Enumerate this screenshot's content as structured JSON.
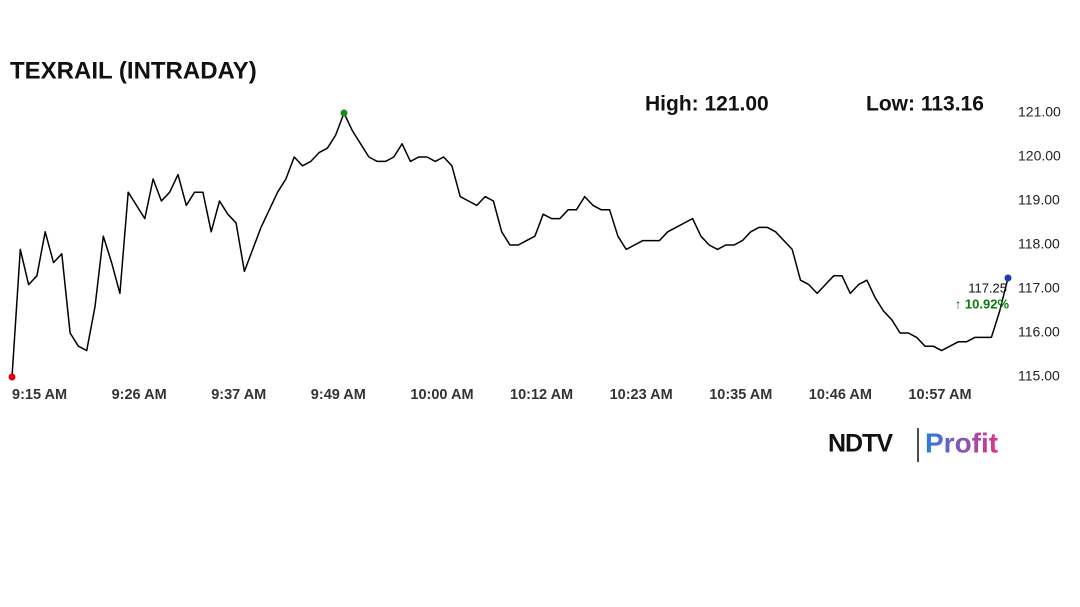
{
  "chart_data": {
    "type": "line",
    "title": "TEXRAIL (INTRADAY)",
    "high_label": "High: 121.00",
    "low_label": "Low: 113.16",
    "change_label": "↑ 10.92%",
    "color": "#000000",
    "start_color": "#e0000f",
    "high_color": "#1a8a1a",
    "end_color": "#1f3fa6",
    "change_color": "#0a7a0a",
    "high_index": 40,
    "categories": [
      "9:15 AM",
      null,
      null,
      null,
      null,
      null,
      null,
      null,
      null,
      null,
      null,
      null,
      "9:26 AM",
      null,
      null,
      null,
      null,
      null,
      null,
      null,
      null,
      null,
      null,
      null,
      "9:37 AM",
      null,
      null,
      null,
      null,
      null,
      null,
      null,
      null,
      null,
      null,
      null,
      "9:49 AM",
      null,
      null,
      null,
      null,
      null,
      null,
      null,
      null,
      null,
      null,
      null,
      "10:00 AM",
      null,
      null,
      null,
      null,
      null,
      null,
      null,
      null,
      null,
      null,
      null,
      "10:12 AM",
      null,
      null,
      null,
      null,
      null,
      null,
      null,
      null,
      null,
      null,
      null,
      "10:23 AM",
      null,
      null,
      null,
      null,
      null,
      null,
      null,
      null,
      null,
      null,
      null,
      "10:35 AM",
      null,
      null,
      null,
      null,
      null,
      null,
      null,
      null,
      null,
      null,
      null,
      "10:46 AM",
      null,
      null,
      null,
      null,
      null,
      null,
      null,
      null,
      null,
      null,
      null,
      "10:57 AM",
      null,
      null,
      null,
      null,
      null,
      null,
      null,
      null,
      null,
      null,
      null,
      null
    ],
    "values": [
      115.0,
      117.9,
      117.1,
      117.3,
      118.3,
      117.6,
      117.8,
      116.0,
      115.7,
      115.6,
      116.6,
      118.2,
      117.6,
      116.9,
      119.2,
      118.9,
      118.6,
      119.5,
      119.0,
      119.2,
      119.6,
      118.9,
      119.2,
      119.2,
      118.3,
      119.0,
      118.7,
      118.5,
      117.4,
      117.9,
      118.4,
      118.8,
      119.2,
      119.5,
      120.0,
      119.8,
      119.9,
      120.1,
      120.2,
      120.5,
      121.0,
      120.6,
      120.3,
      120.0,
      119.9,
      119.9,
      120.0,
      120.3,
      119.9,
      120.0,
      120.0,
      119.9,
      120.0,
      119.8,
      119.1,
      119.0,
      118.9,
      119.1,
      119.0,
      118.3,
      118.0,
      118.0,
      118.1,
      118.2,
      118.7,
      118.6,
      118.6,
      118.8,
      118.8,
      119.1,
      118.9,
      118.8,
      118.8,
      118.2,
      117.9,
      118.0,
      118.1,
      118.1,
      118.1,
      118.3,
      118.4,
      118.5,
      118.6,
      118.2,
      118.0,
      117.9,
      118.0,
      118.0,
      118.1,
      118.3,
      118.4,
      118.4,
      118.3,
      118.1,
      117.9,
      117.2,
      117.1,
      116.9,
      117.1,
      117.3,
      117.3,
      116.9,
      117.1,
      117.2,
      116.8,
      116.5,
      116.3,
      116.0,
      116.0,
      115.9,
      115.7,
      115.7,
      115.6,
      115.7,
      115.8,
      115.8,
      115.9,
      115.9,
      115.9,
      116.5,
      117.25
    ],
    "ylim": [
      115,
      121
    ],
    "yticks": [
      {
        "value": 115,
        "label": "115.00"
      },
      {
        "value": 116,
        "label": "116.00"
      },
      {
        "value": 117,
        "label": "117.00"
      },
      {
        "value": 118,
        "label": "118.00"
      },
      {
        "value": 119,
        "label": "119.00"
      },
      {
        "value": 120,
        "label": "120.00"
      },
      {
        "value": 121,
        "label": "121.00"
      }
    ],
    "logo": {
      "brand": "NDTV",
      "product": "Profit"
    }
  }
}
